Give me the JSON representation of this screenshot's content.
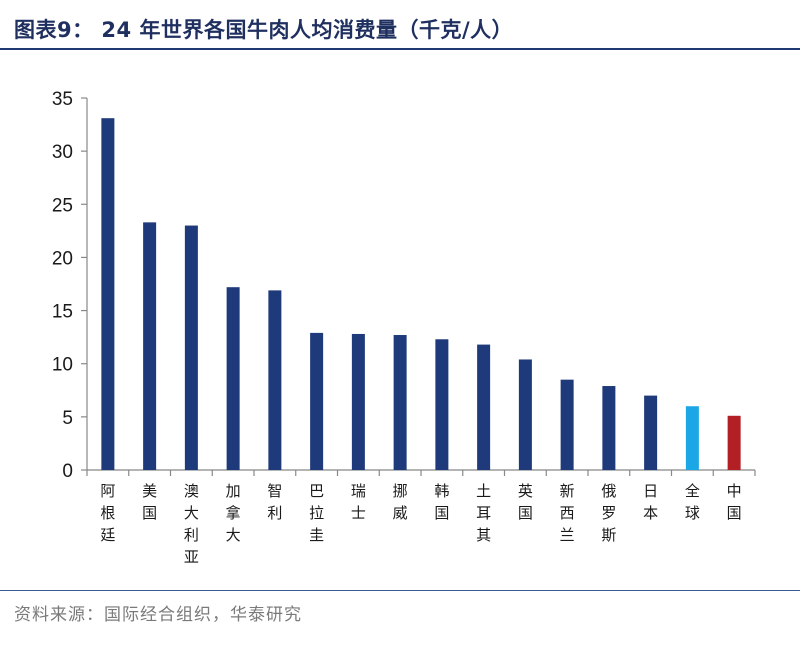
{
  "header": {
    "title": "图表9： 24 年世界各国牛肉人均消费量（千克/人）"
  },
  "footer": {
    "source": "资料来源：国际经合组织，华泰研究"
  },
  "colors": {
    "bar_default": "#1f3a7a",
    "bar_global": "#1ba7e6",
    "bar_china": "#b21f24",
    "title": "#1f2f5f",
    "rule": "#1f3a73"
  },
  "chart_data": {
    "type": "bar",
    "title": "24 年世界各国牛肉人均消费量（千克/人）",
    "xlabel": "",
    "ylabel": "",
    "ylim": [
      0,
      35
    ],
    "yticks": [
      0,
      5,
      10,
      15,
      20,
      25,
      30,
      35
    ],
    "grid": false,
    "legend": "none",
    "categories": [
      "阿根廷",
      "美国",
      "澳大利亚",
      "加拿大",
      "智利",
      "巴拉圭",
      "瑞士",
      "挪威",
      "韩国",
      "土耳其",
      "英国",
      "新西兰",
      "俄罗斯",
      "日本",
      "全球",
      "中国"
    ],
    "values": [
      33.1,
      23.3,
      23.0,
      17.2,
      16.9,
      12.9,
      12.8,
      12.7,
      12.3,
      11.8,
      10.4,
      8.5,
      7.9,
      7.0,
      6.0,
      5.1
    ],
    "bar_colors": [
      "#1f3a7a",
      "#1f3a7a",
      "#1f3a7a",
      "#1f3a7a",
      "#1f3a7a",
      "#1f3a7a",
      "#1f3a7a",
      "#1f3a7a",
      "#1f3a7a",
      "#1f3a7a",
      "#1f3a7a",
      "#1f3a7a",
      "#1f3a7a",
      "#1f3a7a",
      "#1ba7e6",
      "#b21f24"
    ]
  }
}
